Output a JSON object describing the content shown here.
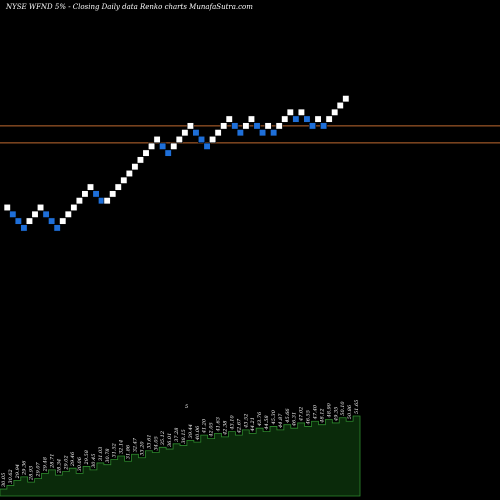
{
  "chart_data": {
    "type": "renko",
    "title": "NYSE WFND 5% - Closing Daily data Renko charts MunafaSutra.com",
    "colors": {
      "background": "#000000",
      "up_brick": "#ffffff",
      "down_brick": "#1e6fd9",
      "reference_line": "#c06a30",
      "volume_fill": "#0a2a0a",
      "volume_stroke": "#2e8b2e",
      "volume_label": "#ffffff"
    },
    "reference_lines": [
      {
        "level": 24
      },
      {
        "level": 19
      }
    ],
    "bricks": [
      {
        "level": 0,
        "dir": "up"
      },
      {
        "level": -2,
        "dir": "down"
      },
      {
        "level": -4,
        "dir": "down"
      },
      {
        "level": -6,
        "dir": "down"
      },
      {
        "level": -4,
        "dir": "up"
      },
      {
        "level": -2,
        "dir": "up"
      },
      {
        "level": 0,
        "dir": "up"
      },
      {
        "level": -2,
        "dir": "down"
      },
      {
        "level": -4,
        "dir": "down"
      },
      {
        "level": -6,
        "dir": "down"
      },
      {
        "level": -4,
        "dir": "up"
      },
      {
        "level": -2,
        "dir": "up"
      },
      {
        "level": 0,
        "dir": "up"
      },
      {
        "level": 2,
        "dir": "up"
      },
      {
        "level": 4,
        "dir": "up"
      },
      {
        "level": 6,
        "dir": "up"
      },
      {
        "level": 4,
        "dir": "down"
      },
      {
        "level": 2,
        "dir": "down"
      },
      {
        "level": 2,
        "dir": "up"
      },
      {
        "level": 4,
        "dir": "up"
      },
      {
        "level": 6,
        "dir": "up"
      },
      {
        "level": 8,
        "dir": "up"
      },
      {
        "level": 10,
        "dir": "up"
      },
      {
        "level": 12,
        "dir": "up"
      },
      {
        "level": 14,
        "dir": "up"
      },
      {
        "level": 16,
        "dir": "up"
      },
      {
        "level": 18,
        "dir": "up"
      },
      {
        "level": 20,
        "dir": "up"
      },
      {
        "level": 18,
        "dir": "down"
      },
      {
        "level": 16,
        "dir": "down"
      },
      {
        "level": 18,
        "dir": "up"
      },
      {
        "level": 20,
        "dir": "up"
      },
      {
        "level": 22,
        "dir": "up"
      },
      {
        "level": 24,
        "dir": "up"
      },
      {
        "level": 22,
        "dir": "down"
      },
      {
        "level": 20,
        "dir": "down"
      },
      {
        "level": 18,
        "dir": "down"
      },
      {
        "level": 20,
        "dir": "up"
      },
      {
        "level": 22,
        "dir": "up"
      },
      {
        "level": 24,
        "dir": "up"
      },
      {
        "level": 26,
        "dir": "up"
      },
      {
        "level": 24,
        "dir": "down"
      },
      {
        "level": 22,
        "dir": "down"
      },
      {
        "level": 24,
        "dir": "up"
      },
      {
        "level": 26,
        "dir": "up"
      },
      {
        "level": 24,
        "dir": "down"
      },
      {
        "level": 22,
        "dir": "down"
      },
      {
        "level": 24,
        "dir": "up"
      },
      {
        "level": 22,
        "dir": "down"
      },
      {
        "level": 24,
        "dir": "up"
      },
      {
        "level": 26,
        "dir": "up"
      },
      {
        "level": 28,
        "dir": "up"
      },
      {
        "level": 26,
        "dir": "down"
      },
      {
        "level": 28,
        "dir": "up"
      },
      {
        "level": 26,
        "dir": "down"
      },
      {
        "level": 24,
        "dir": "down"
      },
      {
        "level": 26,
        "dir": "up"
      },
      {
        "level": 24,
        "dir": "down"
      },
      {
        "level": 26,
        "dir": "up"
      },
      {
        "level": 28,
        "dir": "up"
      },
      {
        "level": 30,
        "dir": "up"
      },
      {
        "level": 32,
        "dir": "up"
      }
    ],
    "volume_levels": [
      8,
      12,
      18,
      22,
      16,
      20,
      26,
      30,
      24,
      28,
      32,
      26,
      34,
      30,
      38,
      36,
      42,
      46,
      40,
      48,
      44,
      52,
      50,
      56,
      54,
      60,
      58,
      64,
      62,
      70,
      66,
      72,
      68,
      74,
      70,
      76,
      72,
      78,
      74,
      80,
      76,
      82,
      78,
      84,
      80,
      86,
      82,
      88,
      84,
      90,
      86,
      92
    ],
    "volume_labels": [
      "30.05",
      "30.62",
      "29.94",
      "29.36",
      "28.93",
      "29.07",
      "29.48",
      "28.71",
      "28.34",
      "29.02",
      "29.46",
      "30.06",
      "29.58",
      "30.45",
      "31.03",
      "30.78",
      "31.52",
      "32.14",
      "31.86",
      "32.47",
      "33.20",
      "33.61",
      "34.05",
      "35.12",
      "36.01",
      "37.28",
      "38.15",
      "39.44",
      "40.06",
      "41.20",
      "42.05",
      "41.63",
      "42.38",
      "43.10",
      "42.67",
      "43.52",
      "44.21",
      "43.76",
      "44.58",
      "45.30",
      "44.87",
      "45.66",
      "46.31",
      "47.02",
      "46.55",
      "47.40",
      "48.12",
      "48.90",
      "49.35",
      "50.10",
      "50.86",
      "51.65"
    ],
    "volume_marker": "5"
  }
}
